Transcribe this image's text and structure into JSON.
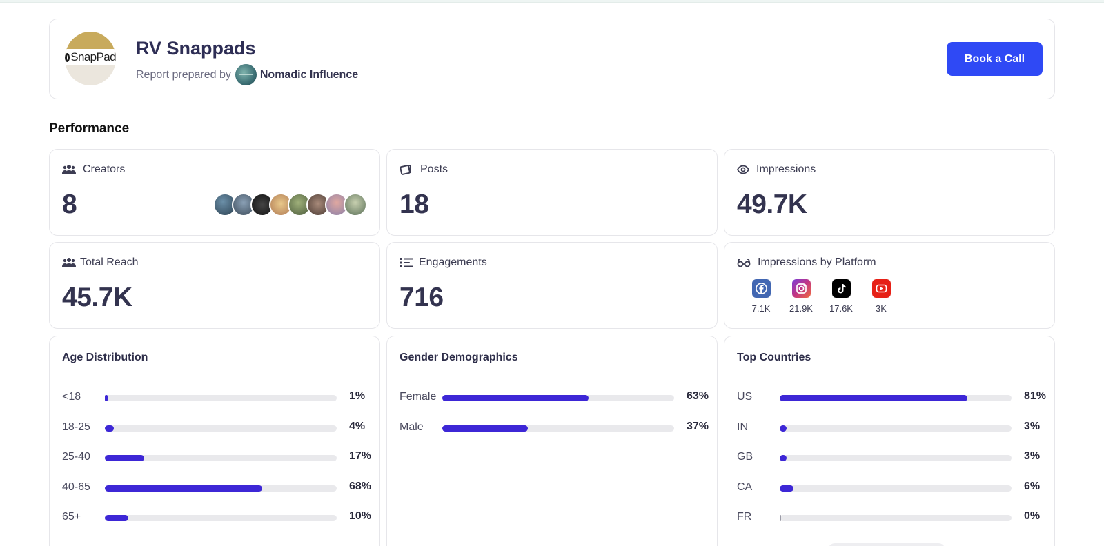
{
  "header": {
    "brand_name": "RV Snappads",
    "logo_text": "SnapPad",
    "prepared_by_label": "Report prepared by",
    "agency_name": "Nomadic Influence",
    "book_call_label": "Book a Call",
    "accent_color": "#2f49f5"
  },
  "performance": {
    "section_title": "Performance",
    "creators": {
      "label": "Creators",
      "value": "8",
      "icon": "users-icon"
    },
    "posts": {
      "label": "Posts",
      "value": "18",
      "icon": "posts-icon"
    },
    "impressions": {
      "label": "Impressions",
      "value": "49.7K",
      "icon": "eye-icon"
    },
    "total_reach": {
      "label": "Total Reach",
      "value": "45.7K",
      "icon": "users-icon"
    },
    "engagements": {
      "label": "Engagements",
      "value": "716",
      "icon": "list-icon"
    },
    "impressions_by_platform": {
      "label": "Impressions by Platform",
      "icon": "glasses-icon",
      "platforms": [
        {
          "name": "facebook-icon",
          "value": "7.1K",
          "color": "#4267b2"
        },
        {
          "name": "instagram-icon",
          "value": "21.9K",
          "color": "#c13584"
        },
        {
          "name": "tiktok-icon",
          "value": "17.6K",
          "color": "#000000"
        },
        {
          "name": "youtube-icon",
          "value": "3K",
          "color": "#e62117"
        }
      ]
    }
  },
  "age_distribution": {
    "title": "Age Distribution",
    "rows": [
      {
        "label": "<18",
        "percent": 1,
        "percent_label": "1%"
      },
      {
        "label": "18-25",
        "percent": 4,
        "percent_label": "4%"
      },
      {
        "label": "25-40",
        "percent": 17,
        "percent_label": "17%"
      },
      {
        "label": "40-65",
        "percent": 68,
        "percent_label": "68%"
      },
      {
        "label": "65+",
        "percent": 10,
        "percent_label": "10%"
      }
    ]
  },
  "gender_demographics": {
    "title": "Gender Demographics",
    "rows": [
      {
        "label": "Female",
        "percent": 63,
        "percent_label": "63%"
      },
      {
        "label": "Male",
        "percent": 37,
        "percent_label": "37%"
      }
    ]
  },
  "top_countries": {
    "title": "Top Countries",
    "rows": [
      {
        "label": "US",
        "percent": 81,
        "percent_label": "81%"
      },
      {
        "label": "IN",
        "percent": 3,
        "percent_label": "3%"
      },
      {
        "label": "GB",
        "percent": 3,
        "percent_label": "3%"
      },
      {
        "label": "CA",
        "percent": 6,
        "percent_label": "6%"
      },
      {
        "label": "FR",
        "percent": 0,
        "percent_label": "0%"
      }
    ]
  },
  "bar_color": "#3d27d6"
}
